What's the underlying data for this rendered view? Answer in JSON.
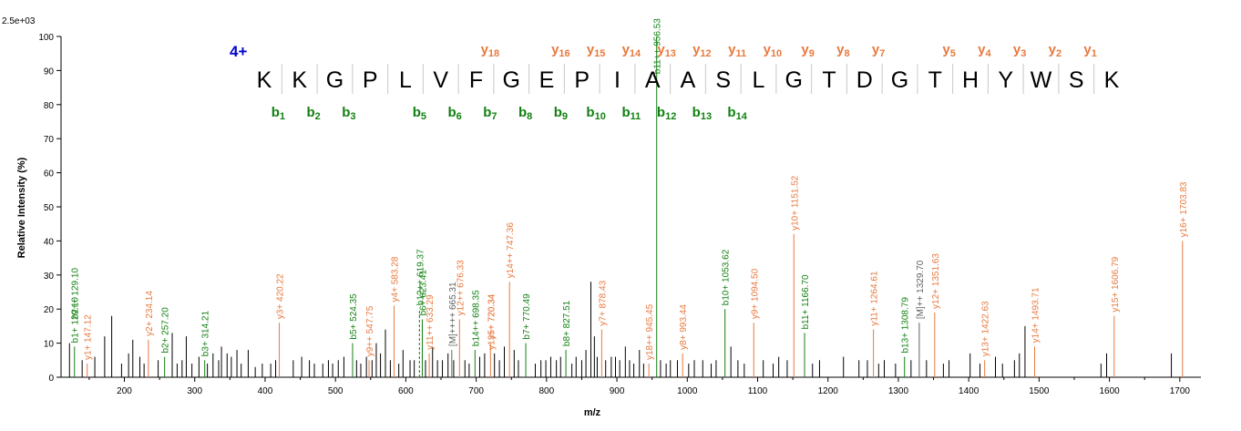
{
  "colors": {
    "b_ion": "#128012",
    "y_ion": "#e8793e",
    "other": "#606060",
    "unassigned": "#000000",
    "charge": "#0000cc"
  },
  "intensity_scale": "2.5e+03",
  "charge_state": "4+",
  "sequence": [
    "K",
    "K",
    "G",
    "P",
    "L",
    "V",
    "F",
    "G",
    "E",
    "P",
    "I",
    "A",
    "A",
    "S",
    "L",
    "G",
    "T",
    "D",
    "G",
    "T",
    "H",
    "Y",
    "W",
    "S",
    "K"
  ],
  "b_ions": [
    {
      "pos": 1,
      "num": "1"
    },
    {
      "pos": 2,
      "num": "2"
    },
    {
      "pos": 3,
      "num": "3"
    },
    {
      "pos": 5,
      "num": "5"
    },
    {
      "pos": 6,
      "num": "6"
    },
    {
      "pos": 7,
      "num": "7"
    },
    {
      "pos": 8,
      "num": "8"
    },
    {
      "pos": 9,
      "num": "9"
    },
    {
      "pos": 10,
      "num": "10"
    },
    {
      "pos": 11,
      "num": "11"
    },
    {
      "pos": 12,
      "num": "12"
    },
    {
      "pos": 13,
      "num": "13"
    },
    {
      "pos": 14,
      "num": "14"
    }
  ],
  "y_ions": [
    {
      "pos": 8,
      "num": "18"
    },
    {
      "pos": 10,
      "num": "16"
    },
    {
      "pos": 11,
      "num": "15"
    },
    {
      "pos": 12,
      "num": "14"
    },
    {
      "pos": 13,
      "num": "13"
    },
    {
      "pos": 14,
      "num": "12"
    },
    {
      "pos": 15,
      "num": "11"
    },
    {
      "pos": 16,
      "num": "10"
    },
    {
      "pos": 17,
      "num": "9"
    },
    {
      "pos": 18,
      "num": "8"
    },
    {
      "pos": 19,
      "num": "7"
    },
    {
      "pos": 21,
      "num": "5"
    },
    {
      "pos": 22,
      "num": "4"
    },
    {
      "pos": 23,
      "num": "3"
    },
    {
      "pos": 24,
      "num": "2"
    },
    {
      "pos": 25,
      "num": "1"
    }
  ],
  "chart_data": {
    "type": "bar",
    "xlabel": "m/z",
    "ylabel": "Relative   Intensity (%)",
    "xlim": [
      110,
      1730
    ],
    "ylim": [
      0,
      100
    ],
    "xticks": [
      200,
      300,
      400,
      500,
      600,
      700,
      800,
      900,
      1000,
      1100,
      1200,
      1300,
      1400,
      1500,
      1600,
      1700
    ],
    "yticks": [
      0,
      10,
      20,
      30,
      40,
      50,
      60,
      70,
      80,
      90,
      100
    ],
    "labeled_peaks": [
      {
        "mz": 129.1,
        "intensity": 9,
        "label": "b1+ 129.10",
        "type": "b"
      },
      {
        "mz": 129.1,
        "intensity": 16,
        "label": "b2++ 129.10",
        "type": "b",
        "stem": false
      },
      {
        "mz": 147.12,
        "intensity": 4,
        "label": "y1+ 147.12",
        "type": "y"
      },
      {
        "mz": 234.14,
        "intensity": 11,
        "label": "y2+ 234.14",
        "type": "y"
      },
      {
        "mz": 257.2,
        "intensity": 6,
        "label": "b2+ 257.20",
        "type": "b"
      },
      {
        "mz": 314.21,
        "intensity": 5,
        "label": "b3+ 314.21",
        "type": "b"
      },
      {
        "mz": 420.22,
        "intensity": 16,
        "label": "y3+ 420.22",
        "type": "y"
      },
      {
        "mz": 524.35,
        "intensity": 10,
        "label": "b5+ 524.35",
        "type": "b"
      },
      {
        "mz": 547.75,
        "intensity": 5,
        "label": "y9++ 547.75",
        "type": "y"
      },
      {
        "mz": 583.28,
        "intensity": 21,
        "label": "y4+ 583.28",
        "type": "y"
      },
      {
        "mz": 619.37,
        "intensity": 20,
        "label": "b12++ 619.37",
        "type": "b",
        "dashed": true
      },
      {
        "mz": 623.41,
        "intensity": 17,
        "label": "b6+ 623.41",
        "type": "b"
      },
      {
        "mz": 633.29,
        "intensity": 7,
        "label": "y11++ 633.29",
        "type": "y"
      },
      {
        "mz": 665.31,
        "intensity": 8,
        "label": "[M]++++ 665.31",
        "type": "m"
      },
      {
        "mz": 676.33,
        "intensity": 17,
        "label": "y12++ 676.33",
        "type": "y"
      },
      {
        "mz": 698.35,
        "intensity": 8,
        "label": "b14++ 698.35",
        "type": "b"
      },
      {
        "mz": 720.34,
        "intensity": 10,
        "label": "y5+ 720.34",
        "type": "y"
      },
      {
        "mz": 720.34,
        "intensity": 7,
        "label": "y13++ 720.34",
        "type": "y",
        "stem": false
      },
      {
        "mz": 747.36,
        "intensity": 28,
        "label": "y14++ 747.36",
        "type": "y"
      },
      {
        "mz": 770.49,
        "intensity": 10,
        "label": "b7+ 770.49",
        "type": "b"
      },
      {
        "mz": 827.51,
        "intensity": 8,
        "label": "b8+ 827.51",
        "type": "b"
      },
      {
        "mz": 878.43,
        "intensity": 14,
        "label": "y7+ 878.43",
        "type": "y"
      },
      {
        "mz": 945.45,
        "intensity": 4,
        "label": "y18++ 945.45",
        "type": "y"
      },
      {
        "mz": 956.53,
        "intensity": 100,
        "label": "b11++ 956.53",
        "type": "b"
      },
      {
        "mz": 993.44,
        "intensity": 7,
        "label": "y8+ 993.44",
        "type": "y"
      },
      {
        "mz": 1053.62,
        "intensity": 20,
        "label": "b10+ 1053.62",
        "type": "b"
      },
      {
        "mz": 1094.5,
        "intensity": 16,
        "label": "y9+ 1094.50",
        "type": "y"
      },
      {
        "mz": 1151.52,
        "intensity": 42,
        "label": "y10+ 1151.52",
        "type": "y"
      },
      {
        "mz": 1166.7,
        "intensity": 13,
        "label": "b11+ 1166.70",
        "type": "b"
      },
      {
        "mz": 1264.61,
        "intensity": 14,
        "label": "y11+ 1264.61",
        "type": "y"
      },
      {
        "mz": 1308.79,
        "intensity": 6,
        "label": "b13+ 1308.79",
        "type": "b"
      },
      {
        "mz": 1329.7,
        "intensity": 16,
        "label": "[M]++ 1329.70",
        "type": "m"
      },
      {
        "mz": 1351.63,
        "intensity": 19,
        "label": "y12+ 1351.63",
        "type": "y"
      },
      {
        "mz": 1422.63,
        "intensity": 5,
        "label": "y13+ 1422.63",
        "type": "y"
      },
      {
        "mz": 1493.71,
        "intensity": 9,
        "label": "y14+ 1493.71",
        "type": "y"
      },
      {
        "mz": 1606.79,
        "intensity": 18,
        "label": "y15+ 1606.79",
        "type": "y"
      },
      {
        "mz": 1703.83,
        "intensity": 40,
        "label": "y16+ 1703.83",
        "type": "y"
      }
    ],
    "unlabeled_peaks": [
      [
        122,
        10
      ],
      [
        140,
        5
      ],
      [
        158,
        6
      ],
      [
        172,
        12
      ],
      [
        182,
        18
      ],
      [
        196,
        4
      ],
      [
        206,
        7
      ],
      [
        212,
        11
      ],
      [
        222,
        6
      ],
      [
        228,
        4
      ],
      [
        248,
        5
      ],
      [
        268,
        13
      ],
      [
        275,
        4
      ],
      [
        282,
        5
      ],
      [
        288,
        12
      ],
      [
        296,
        4
      ],
      [
        306,
        6
      ],
      [
        318,
        4
      ],
      [
        326,
        7
      ],
      [
        334,
        5
      ],
      [
        338,
        9
      ],
      [
        346,
        7
      ],
      [
        352,
        6
      ],
      [
        360,
        8
      ],
      [
        366,
        4
      ],
      [
        376,
        8
      ],
      [
        386,
        3
      ],
      [
        396,
        4
      ],
      [
        408,
        4
      ],
      [
        415,
        5
      ],
      [
        440,
        5
      ],
      [
        452,
        6
      ],
      [
        463,
        5
      ],
      [
        470,
        4
      ],
      [
        482,
        4
      ],
      [
        490,
        5
      ],
      [
        496,
        4
      ],
      [
        504,
        5
      ],
      [
        512,
        6
      ],
      [
        530,
        5
      ],
      [
        536,
        4
      ],
      [
        544,
        6
      ],
      [
        552,
        5
      ],
      [
        558,
        10
      ],
      [
        564,
        7
      ],
      [
        571,
        14
      ],
      [
        578,
        5
      ],
      [
        590,
        4
      ],
      [
        596,
        8
      ],
      [
        606,
        5
      ],
      [
        612,
        5
      ],
      [
        628,
        5
      ],
      [
        638,
        9
      ],
      [
        645,
        5
      ],
      [
        652,
        5
      ],
      [
        660,
        7
      ],
      [
        668,
        5
      ],
      [
        684,
        5
      ],
      [
        690,
        4
      ],
      [
        705,
        6
      ],
      [
        712,
        7
      ],
      [
        726,
        7
      ],
      [
        733,
        5
      ],
      [
        740,
        9
      ],
      [
        754,
        8
      ],
      [
        760,
        5
      ],
      [
        784,
        4
      ],
      [
        792,
        5
      ],
      [
        799,
        5
      ],
      [
        806,
        6
      ],
      [
        814,
        5
      ],
      [
        820,
        6
      ],
      [
        836,
        4
      ],
      [
        842,
        6
      ],
      [
        850,
        5
      ],
      [
        856,
        8
      ],
      [
        863,
        28
      ],
      [
        868,
        12
      ],
      [
        872,
        6
      ],
      [
        884,
        5
      ],
      [
        892,
        6
      ],
      [
        898,
        6
      ],
      [
        904,
        5
      ],
      [
        912,
        9
      ],
      [
        918,
        5
      ],
      [
        924,
        4
      ],
      [
        932,
        8
      ],
      [
        938,
        4
      ],
      [
        962,
        5
      ],
      [
        970,
        4
      ],
      [
        976,
        5
      ],
      [
        986,
        5
      ],
      [
        1002,
        4
      ],
      [
        1010,
        5
      ],
      [
        1022,
        5
      ],
      [
        1034,
        4
      ],
      [
        1041,
        5
      ],
      [
        1062,
        9
      ],
      [
        1072,
        5
      ],
      [
        1081,
        4
      ],
      [
        1108,
        5
      ],
      [
        1122,
        4
      ],
      [
        1130,
        6
      ],
      [
        1142,
        5
      ],
      [
        1178,
        4
      ],
      [
        1188,
        5
      ],
      [
        1222,
        6
      ],
      [
        1244,
        5
      ],
      [
        1256,
        5
      ],
      [
        1272,
        4
      ],
      [
        1280,
        5
      ],
      [
        1296,
        4
      ],
      [
        1318,
        5
      ],
      [
        1340,
        5
      ],
      [
        1364,
        4
      ],
      [
        1372,
        5
      ],
      [
        1402,
        7
      ],
      [
        1416,
        4
      ],
      [
        1438,
        6
      ],
      [
        1448,
        4
      ],
      [
        1465,
        5
      ],
      [
        1472,
        7
      ],
      [
        1480,
        15
      ],
      [
        1588,
        4
      ],
      [
        1596,
        7
      ],
      [
        1688,
        7
      ]
    ]
  }
}
